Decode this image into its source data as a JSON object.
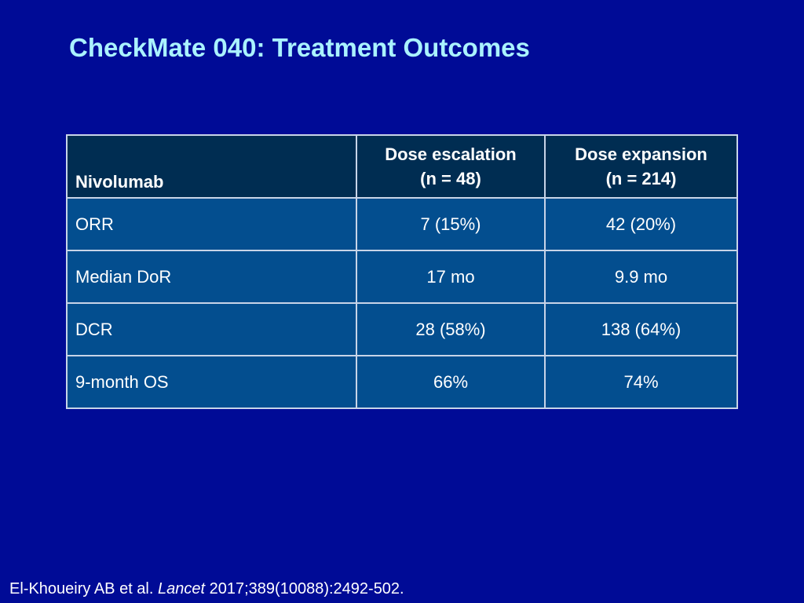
{
  "title": "CheckMate 040: Treatment Outcomes",
  "table": {
    "header": {
      "label": "Nivolumab",
      "columns": [
        {
          "line1": "Dose escalation",
          "line2": "(n = 48)"
        },
        {
          "line1": "Dose expansion",
          "line2": "(n = 214)"
        }
      ]
    },
    "rows": [
      {
        "label": "ORR",
        "escalation": "7 (15%)",
        "expansion": "42 (20%)"
      },
      {
        "label": "Median DoR",
        "escalation": "17 mo",
        "expansion": "9.9 mo"
      },
      {
        "label": "DCR",
        "escalation": "28 (58%)",
        "expansion": "138 (64%)"
      },
      {
        "label": "9-month OS",
        "escalation": "66%",
        "expansion": "74%"
      }
    ]
  },
  "citation": {
    "authors": "El-Khoueiry AB et al.",
    "journal": "Lancet",
    "details": "2017;389(10088):2492-502."
  },
  "colors": {
    "background": "#000b96",
    "title": "#aaf2ff",
    "header_fill": "#002d52",
    "row_fill": "#034e8f",
    "grid": "#c8d4e8",
    "text": "#ffffff"
  }
}
